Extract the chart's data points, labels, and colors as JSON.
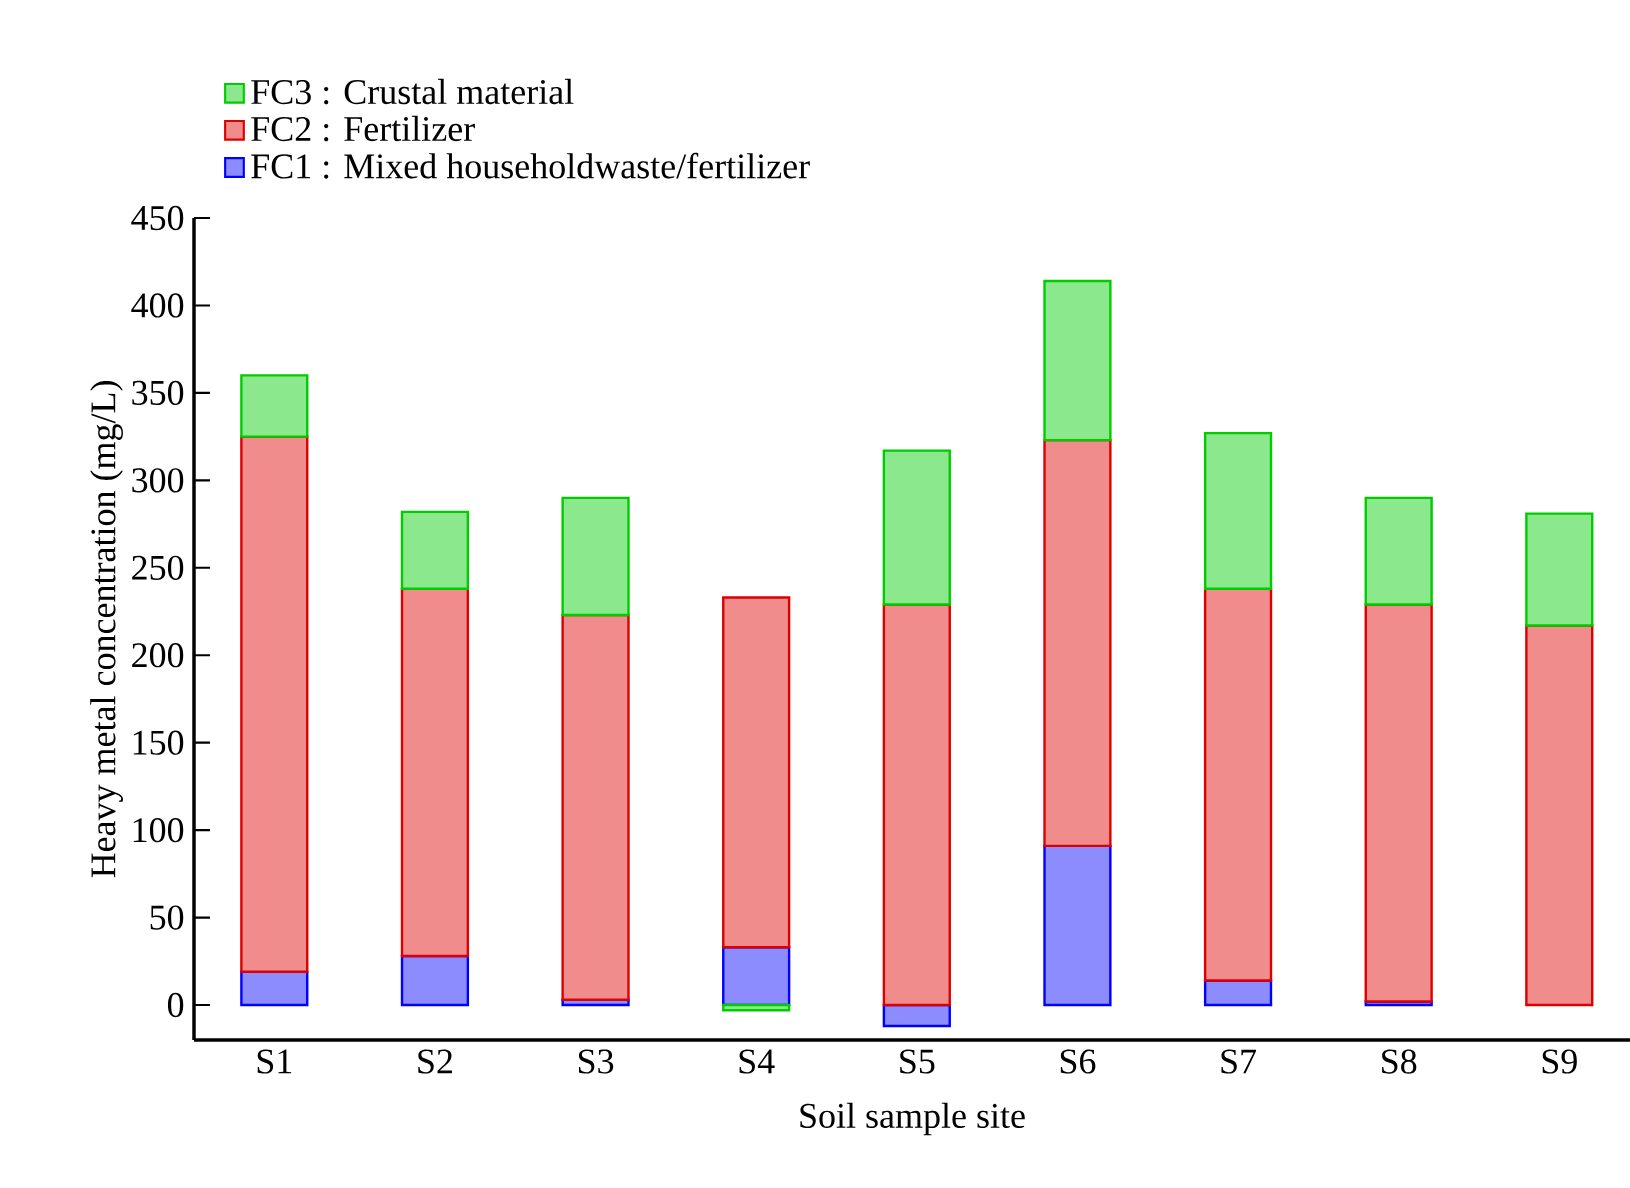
{
  "chart_data": {
    "type": "bar",
    "stacked": true,
    "xlabel": "Soil sample site",
    "ylabel": "Heavy metal concentration (mg/L)",
    "categories": [
      "S1",
      "S2",
      "S3",
      "S4",
      "S5",
      "S6",
      "S7",
      "S8",
      "S9"
    ],
    "series": [
      {
        "name": "FC1 : Mixed householdwaste/fertilizer",
        "color": "#0000ff",
        "values": [
          19,
          28,
          3,
          33,
          -12,
          91,
          14,
          2,
          null
        ]
      },
      {
        "name": "FC2 : Fertilizer",
        "color": "#dd0000",
        "values": [
          306,
          210,
          220,
          200,
          229,
          232,
          224,
          227,
          217
        ]
      },
      {
        "name": "FC3 : Crustal material",
        "color": "#00cc00",
        "values": [
          35,
          44,
          67,
          -3,
          88,
          91,
          89,
          61,
          64
        ]
      }
    ],
    "ylim": [
      -20,
      450
    ],
    "yticks": [
      0,
      50,
      100,
      150,
      200,
      250,
      300,
      350,
      400,
      450
    ],
    "legend": "top left",
    "grid": false
  }
}
